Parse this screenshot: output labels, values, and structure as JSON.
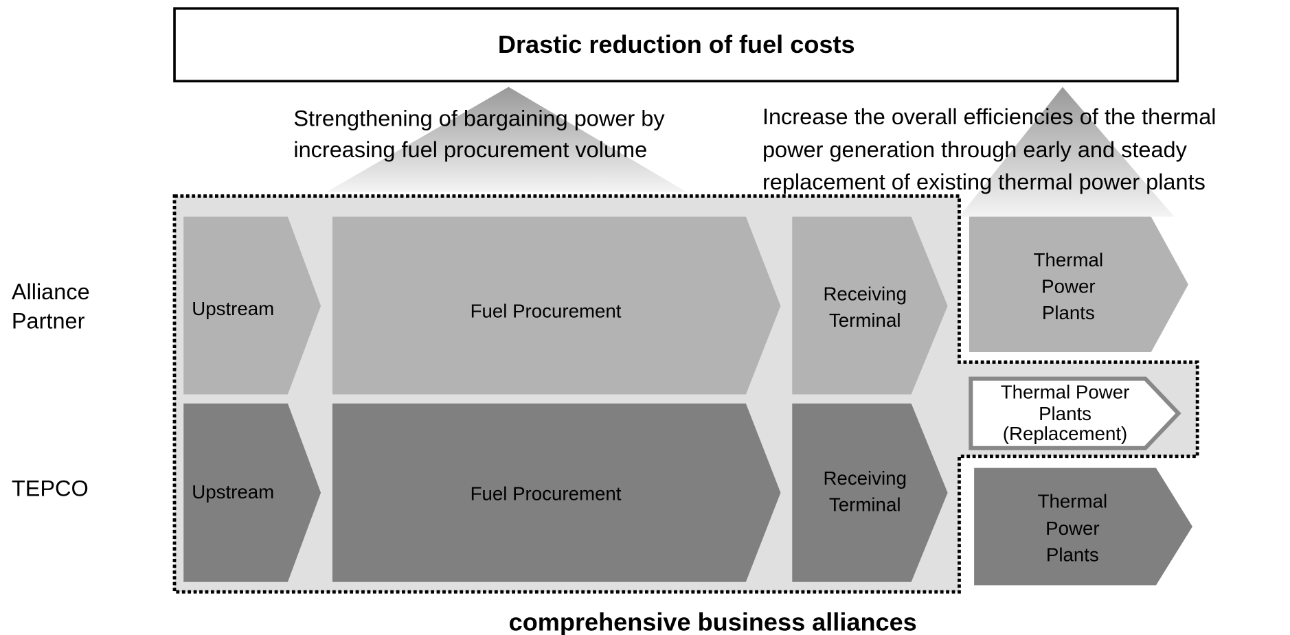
{
  "title": "Drastic reduction of fuel costs",
  "notes": [
    [
      "Strengthening of bargaining power by",
      "increasing fuel procurement volume"
    ],
    [
      "Increase the overall efficiencies of the thermal",
      "power generation through early and steady",
      "replacement of existing thermal power plants"
    ]
  ],
  "row_labels": [
    [
      "Alliance",
      "Partner"
    ],
    [
      "TEPCO"
    ]
  ],
  "rows": [
    [
      [
        "Upstream"
      ],
      [
        "Fuel Procurement"
      ],
      [
        "Receiving",
        "Terminal"
      ],
      [
        "Thermal",
        "Power",
        "Plants"
      ]
    ],
    [
      [
        "Upstream"
      ],
      [
        "Fuel Procurement"
      ],
      [
        "Receiving",
        "Terminal"
      ],
      [
        "Thermal",
        "Power",
        "Plants"
      ]
    ]
  ],
  "replacement": [
    "Thermal Power",
    "Plants",
    "(Replacement)"
  ],
  "footer": "comprehensive business alliances"
}
